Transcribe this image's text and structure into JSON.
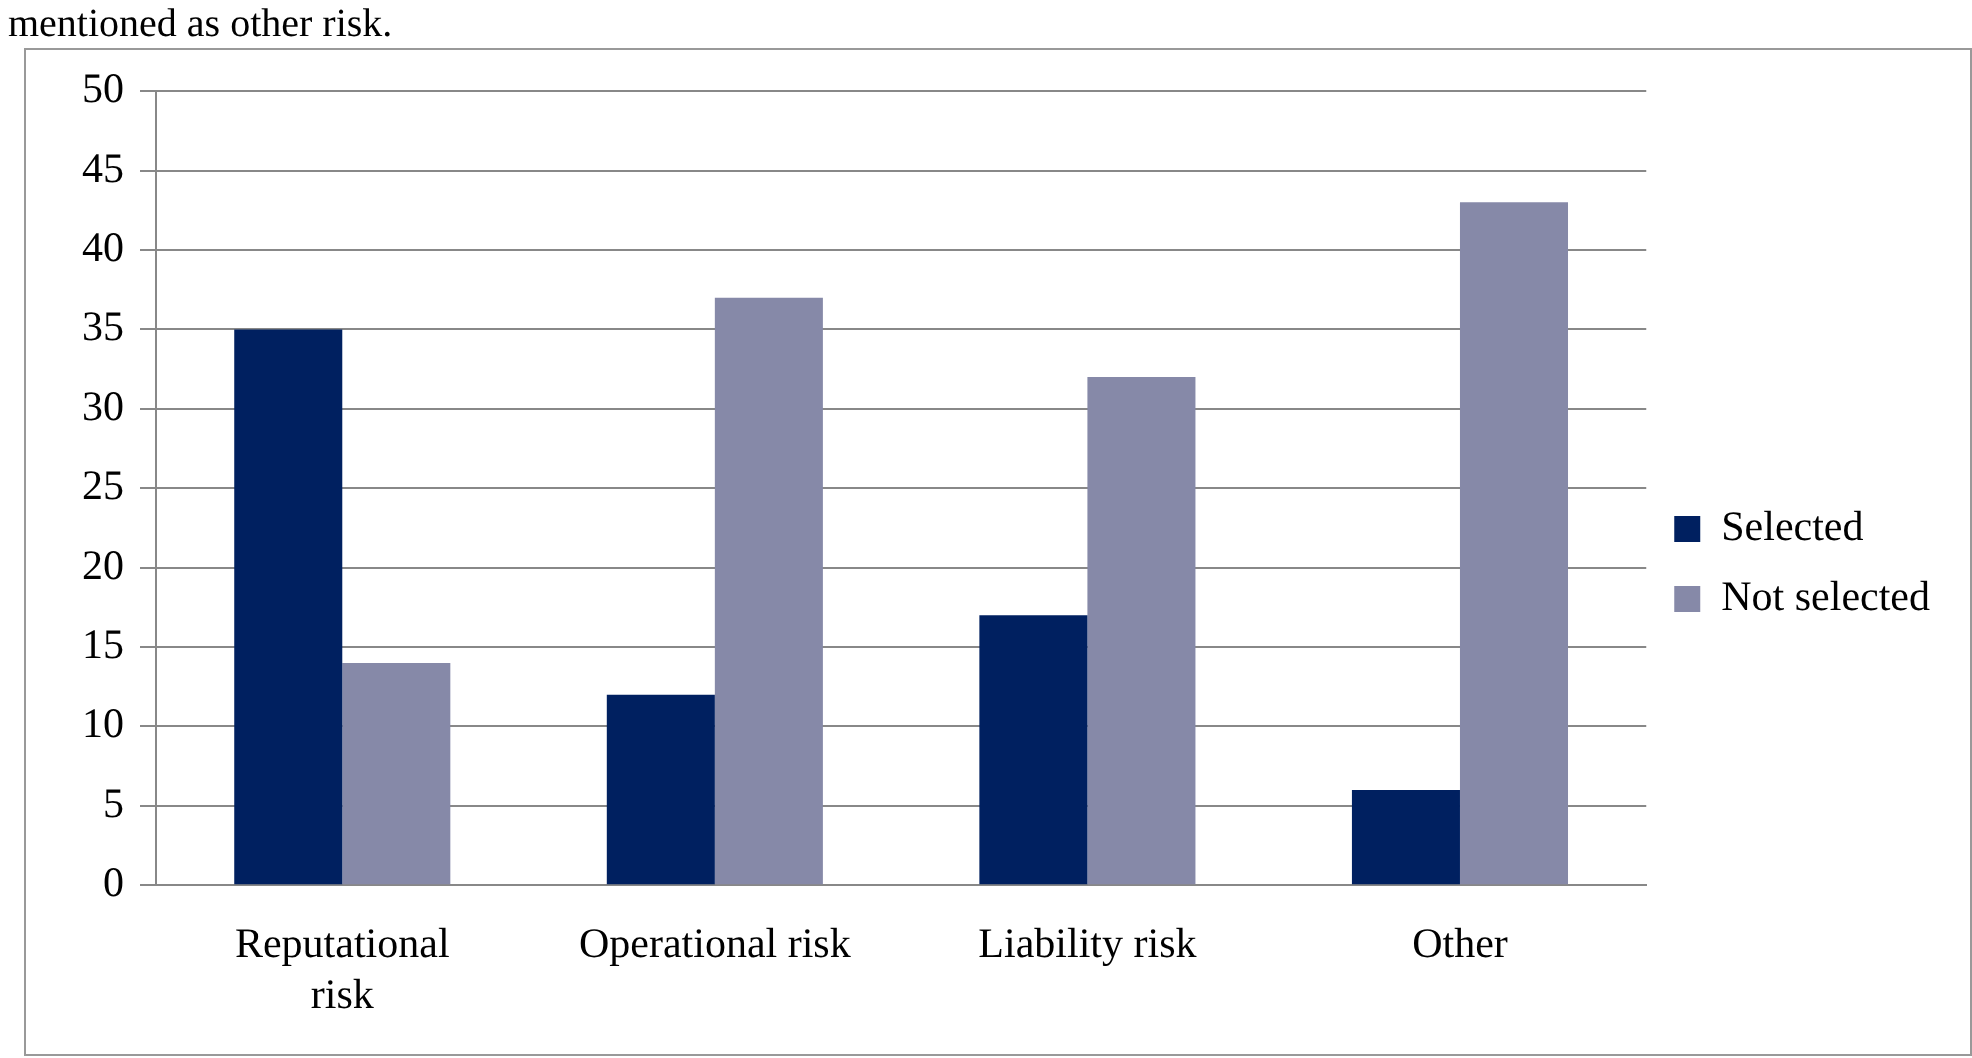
{
  "chart_data": {
    "type": "bar",
    "annotations": [
      "mentioned as other risk."
    ],
    "categories": [
      "Reputational risk",
      "Operational risk",
      "Liability risk",
      "Other"
    ],
    "series": [
      {
        "name": "Selected",
        "color": "#002060",
        "values": [
          35,
          12,
          17,
          6
        ]
      },
      {
        "name": "Not selected",
        "color": "#8689a8",
        "values": [
          14,
          37,
          32,
          43
        ]
      }
    ],
    "ylim": [
      0,
      50
    ],
    "yticks": [
      0,
      5,
      10,
      15,
      20,
      25,
      30,
      35,
      40,
      45,
      50
    ],
    "grid": "y",
    "legend": "right"
  }
}
